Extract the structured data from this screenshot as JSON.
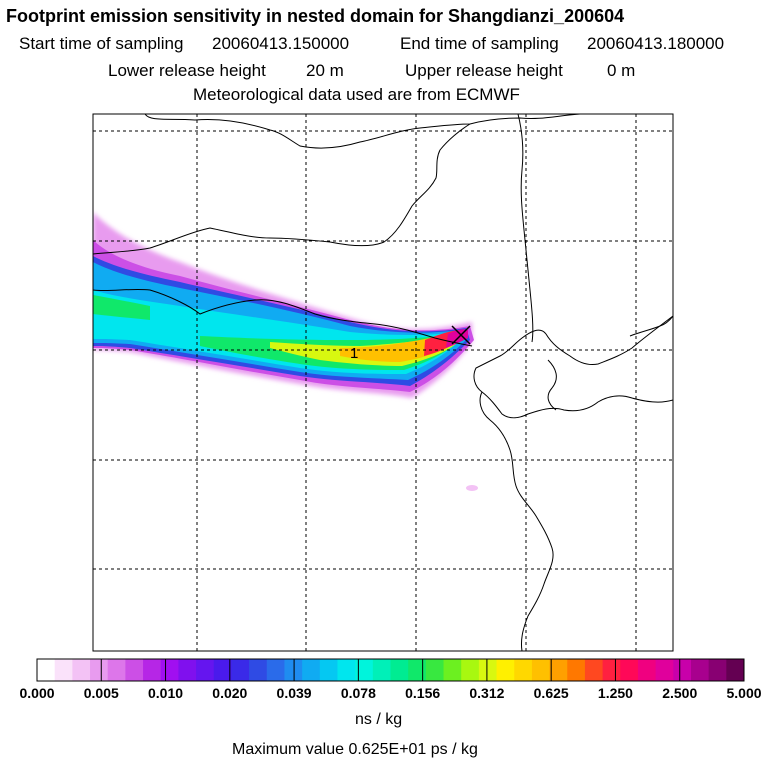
{
  "title": "Footprint emission sensitivity in nested domain for Shangdianzi_200604",
  "header": {
    "start_label": "Start time of sampling",
    "start_value": "20060413.150000",
    "end_label": "End time of sampling",
    "end_value": "20060413.180000",
    "lower_label": "Lower release height",
    "lower_value": "20 m",
    "upper_label": "Upper release height",
    "upper_value": "0 m",
    "met": "Meteorological data used are from ECMWF"
  },
  "chart_data": {
    "type": "heatmap",
    "title": "Footprint emission sensitivity in nested domain for Shangdianzi_200604",
    "units": "ns / kg",
    "max_label": "Maximum value  0.625E+01 ps / kg",
    "colorbar_ticks": [
      "0.000",
      "0.005",
      "0.010",
      "0.020",
      "0.039",
      "0.078",
      "0.156",
      "0.312",
      "0.625",
      "1.250",
      "2.500",
      "5.000"
    ],
    "colorbar_colors": [
      "#ffffff",
      "#fae2fa",
      "#f3c2f5",
      "#e89bef",
      "#dd76ea",
      "#cc4fe6",
      "#b626e6",
      "#a10ff0",
      "#8010ee",
      "#6515ef",
      "#4a1aec",
      "#3a2ae8",
      "#2f4be4",
      "#2a6bea",
      "#1f8cf0",
      "#10abf2",
      "#05c8f2",
      "#00e6ee",
      "#00f4dc",
      "#00f0b8",
      "#00ec92",
      "#10e86a",
      "#38e840",
      "#6cf020",
      "#a8f810",
      "#d8f810",
      "#fff000",
      "#ffd800",
      "#ffc000",
      "#ffa000",
      "#ff7800",
      "#ff4820",
      "#ff2040",
      "#ff0858",
      "#f00080",
      "#e0009c",
      "#c800aa",
      "#a8008e",
      "#880072",
      "#640052"
    ],
    "plume_colors": {
      "edge": "#cc4fe6",
      "outer": "#2f4be4",
      "blue": "#10abf2",
      "cyan": "#00e6ee",
      "green": "#10e86a",
      "yellow": "#d8f810",
      "orange": "#ffc000",
      "red": "#ff2040",
      "magenta": "#e0009c"
    },
    "release_marker": "X",
    "contour_label": "1",
    "grid": true
  }
}
